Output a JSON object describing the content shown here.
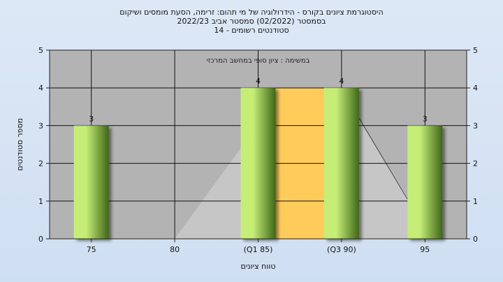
{
  "titles": {
    "line1": "היסטוגרמת ציונים בקורס - הידרולוגיה של מי תהום: זרימה, הסעת מומסים ושיקום",
    "line2": "בסמסטר (02/2022) סמסטר אביב 2022/23",
    "line3": "סטודנטים רשומים - 14"
  },
  "colors": {
    "background": "#d7e4f5",
    "plot_area": "#b3b3b3",
    "bar_light": "#c6ee77",
    "bar_dark": "#3f6718",
    "iqr_band": "#ffcc5c",
    "distribution_area": "#c6c6c6"
  },
  "chart_data": {
    "type": "bar",
    "title": "",
    "annotation": "במשימה : ציון סופי במחשב המרכזי",
    "xlabel": "טווח ציונים",
    "ylabel": "מספר סטודנטים",
    "categories": [
      "75",
      "80",
      "(Q1 85)",
      "(Q3 90)",
      "95"
    ],
    "values": [
      3,
      0,
      4,
      4,
      3
    ],
    "data_labels": [
      "3",
      "",
      "4",
      "4",
      "3"
    ],
    "ylim": [
      0,
      5
    ],
    "yticks": [
      0,
      1,
      2,
      3,
      4,
      5
    ],
    "y_tick_labels": [
      "0",
      "1",
      "2",
      "3",
      "4",
      "5"
    ],
    "iqr_band": {
      "from_category": "(Q1 85)",
      "to_category": "(Q3 90)"
    },
    "grid": true,
    "secondary_y_axis": true
  }
}
